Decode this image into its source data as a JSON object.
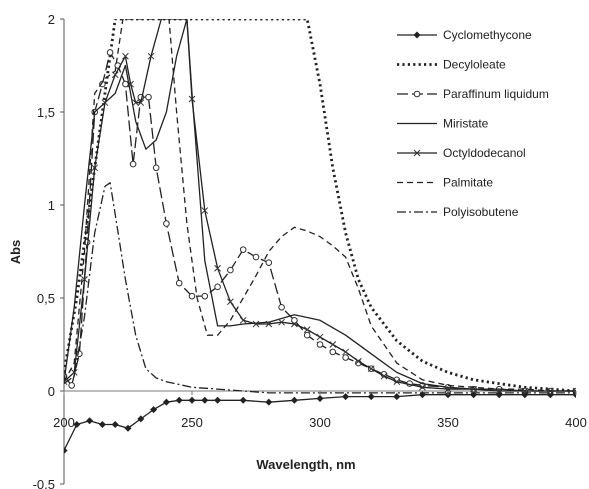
{
  "chart_data": {
    "type": "line",
    "title": "",
    "xlabel": "Wavelength, nm",
    "ylabel": "Abs",
    "xlim": [
      200,
      400
    ],
    "ylim": [
      -0.5,
      2
    ],
    "xticks": [
      200,
      250,
      300,
      350,
      400
    ],
    "yticks": [
      -0.5,
      0,
      0.5,
      1,
      1.5,
      2
    ],
    "xtick_labels": [
      "200",
      "250",
      "300",
      "350",
      "400"
    ],
    "ytick_labels": [
      "-0,5",
      "0",
      "0,5",
      "1",
      "1,5",
      "2"
    ],
    "grid": false,
    "legend_position": "top-right",
    "series": [
      {
        "name": "Cyclomethycone",
        "color": "#222222",
        "style": "solid-diamond",
        "x": [
          200,
          205,
          210,
          215,
          220,
          225,
          230,
          235,
          240,
          245,
          250,
          255,
          260,
          270,
          280,
          290,
          300,
          310,
          320,
          330,
          340,
          350,
          360,
          370,
          380,
          390,
          400
        ],
        "y": [
          -0.32,
          -0.18,
          -0.16,
          -0.18,
          -0.18,
          -0.2,
          -0.15,
          -0.1,
          -0.06,
          -0.05,
          -0.05,
          -0.05,
          -0.05,
          -0.05,
          -0.06,
          -0.05,
          -0.04,
          -0.03,
          -0.03,
          -0.03,
          -0.02,
          -0.02,
          -0.02,
          -0.02,
          -0.02,
          -0.02,
          -0.02
        ]
      },
      {
        "name": "Decyloleate",
        "color": "#222222",
        "style": "dotted",
        "x": [
          200,
          205,
          210,
          215,
          220,
          225,
          230,
          240,
          250,
          260,
          270,
          280,
          290,
          295,
          300,
          305,
          310,
          315,
          320,
          330,
          340,
          350,
          360,
          370,
          380,
          390,
          400
        ],
        "y": [
          0.1,
          0.5,
          1.0,
          1.5,
          2.0,
          2.0,
          2.0,
          2.0,
          2.0,
          2.0,
          2.0,
          2.0,
          2.0,
          2.0,
          1.65,
          1.2,
          0.85,
          0.6,
          0.45,
          0.27,
          0.16,
          0.1,
          0.06,
          0.04,
          0.02,
          0.01,
          0.0
        ]
      },
      {
        "name": "Paraffinum liquidum",
        "color": "#222222",
        "style": "longdash-circle",
        "x": [
          200,
          203,
          206,
          209,
          212,
          215,
          218,
          221,
          224,
          227,
          230,
          233,
          236,
          240,
          245,
          250,
          255,
          260,
          265,
          270,
          275,
          280,
          285,
          290,
          295,
          300,
          305,
          310,
          315,
          320,
          325,
          330,
          335,
          340,
          350,
          360,
          370,
          380,
          390,
          400
        ],
        "y": [
          0.08,
          0.03,
          0.2,
          0.8,
          1.5,
          1.65,
          1.82,
          1.75,
          1.65,
          1.22,
          1.58,
          1.58,
          1.2,
          0.9,
          0.58,
          0.51,
          0.51,
          0.56,
          0.65,
          0.76,
          0.72,
          0.69,
          0.45,
          0.38,
          0.3,
          0.25,
          0.21,
          0.18,
          0.15,
          0.12,
          0.09,
          0.06,
          0.04,
          0.03,
          0.02,
          0.01,
          0.01,
          0.0,
          0.0,
          0.0
        ]
      },
      {
        "name": "Miristate",
        "color": "#222222",
        "style": "solid",
        "x": [
          200,
          204,
          208,
          212,
          216,
          220,
          224,
          226,
          228,
          232,
          236,
          240,
          244,
          248,
          250,
          255,
          260,
          265,
          270,
          280,
          290,
          300,
          310,
          320,
          330,
          340,
          350,
          360,
          370,
          380,
          390,
          400
        ],
        "y": [
          0.05,
          0.45,
          1.0,
          1.5,
          1.55,
          1.6,
          1.75,
          1.6,
          1.45,
          1.3,
          1.35,
          1.5,
          1.8,
          2.0,
          1.6,
          0.7,
          0.35,
          0.35,
          0.36,
          0.37,
          0.41,
          0.38,
          0.3,
          0.2,
          0.1,
          0.04,
          0.02,
          0.01,
          0.01,
          0.0,
          0.0,
          0.0
        ]
      },
      {
        "name": "Octyldodecanol",
        "color": "#222222",
        "style": "solid-x",
        "x": [
          200,
          204,
          208,
          212,
          216,
          220,
          224,
          226,
          228,
          230,
          234,
          238,
          240,
          244,
          248,
          250,
          255,
          260,
          265,
          270,
          275,
          280,
          285,
          290,
          295,
          300,
          305,
          310,
          315,
          320,
          325,
          330,
          340,
          350,
          360,
          370,
          380,
          390,
          400
        ],
        "y": [
          0.05,
          0.1,
          0.6,
          1.2,
          1.55,
          1.7,
          1.8,
          1.65,
          1.55,
          1.55,
          1.8,
          2.0,
          2.0,
          2.0,
          2.0,
          1.57,
          0.97,
          0.66,
          0.48,
          0.38,
          0.36,
          0.36,
          0.37,
          0.36,
          0.33,
          0.29,
          0.25,
          0.21,
          0.16,
          0.12,
          0.08,
          0.05,
          0.02,
          0.01,
          0.01,
          0.0,
          0.0,
          0.0,
          0.0
        ]
      },
      {
        "name": "Palmitate",
        "color": "#222222",
        "style": "dashed",
        "x": [
          200,
          204,
          208,
          212,
          216,
          220,
          223,
          226,
          229,
          232,
          235,
          238,
          241,
          244,
          248,
          252,
          256,
          260,
          265,
          270,
          275,
          280,
          285,
          290,
          295,
          300,
          305,
          310,
          315,
          320,
          330,
          340,
          350,
          360,
          370,
          380,
          390,
          400
        ],
        "y": [
          0.05,
          0.15,
          0.75,
          1.6,
          1.68,
          1.72,
          2.0,
          2.0,
          2.0,
          2.0,
          2.0,
          2.0,
          2.0,
          1.5,
          0.9,
          0.5,
          0.3,
          0.3,
          0.38,
          0.5,
          0.62,
          0.75,
          0.83,
          0.88,
          0.86,
          0.83,
          0.78,
          0.72,
          0.55,
          0.35,
          0.15,
          0.06,
          0.03,
          0.02,
          0.01,
          0.01,
          0.0,
          0.0
        ]
      },
      {
        "name": "Polyisobutene",
        "color": "#222222",
        "style": "dashdot",
        "x": [
          200,
          204,
          208,
          212,
          216,
          218,
          220,
          224,
          228,
          232,
          236,
          240,
          250,
          260,
          270,
          280,
          290,
          300,
          320,
          340,
          360,
          380,
          400
        ],
        "y": [
          0.04,
          0.08,
          0.4,
          0.85,
          1.1,
          1.12,
          0.95,
          0.6,
          0.3,
          0.12,
          0.07,
          0.05,
          0.02,
          0.01,
          0.0,
          -0.01,
          -0.01,
          -0.01,
          -0.01,
          -0.01,
          -0.01,
          -0.01,
          -0.01
        ]
      }
    ]
  }
}
